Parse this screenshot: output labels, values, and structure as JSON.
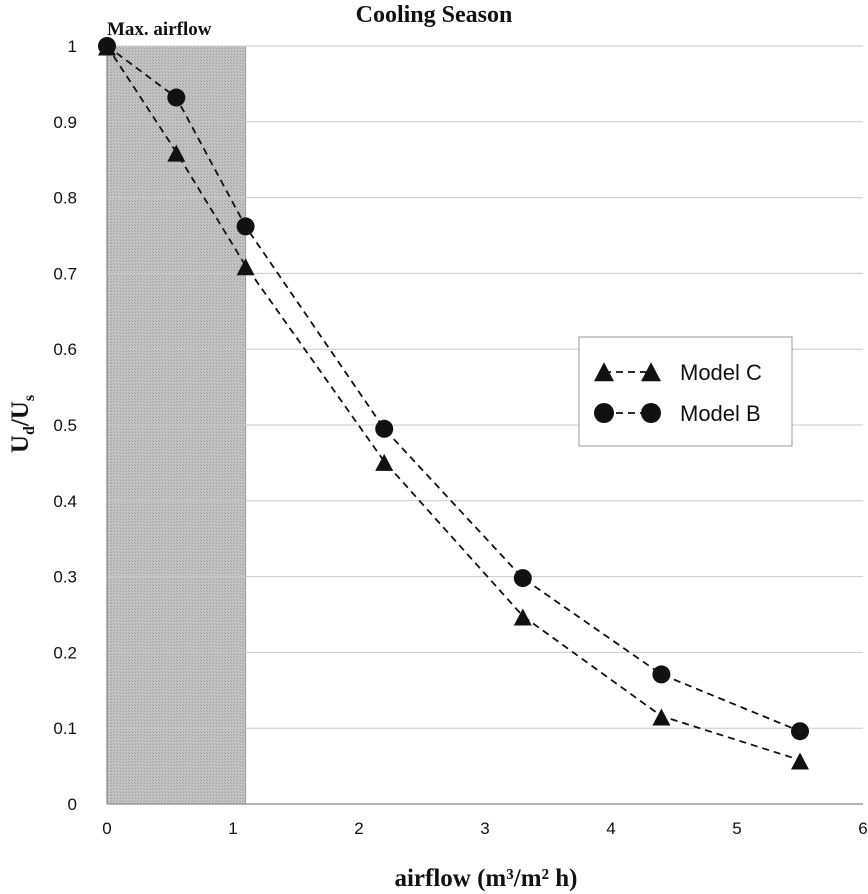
{
  "chart_data": {
    "type": "line",
    "title": "Cooling Season",
    "xlabel": "airflow (m³/m² h)",
    "ylabel": "Ud/Us",
    "ylabel_main": "U",
    "ylabel_sub_d": "d",
    "ylabel_sep": "/",
    "ylabel_sub_s": "s",
    "xlim": [
      0,
      6
    ],
    "ylim": [
      0,
      1
    ],
    "x_ticks": [
      0,
      1,
      2,
      3,
      4,
      5,
      6
    ],
    "y_ticks": [
      0,
      0.1,
      0.2,
      0.3,
      0.4,
      0.5,
      0.6,
      0.7,
      0.8,
      0.9,
      1
    ],
    "x_tick_labels": [
      "0",
      "1",
      "2",
      "3",
      "4",
      "5",
      "6"
    ],
    "y_tick_labels": [
      "0",
      "0.1",
      "0.2",
      "0.3",
      "0.4",
      "0.5",
      "0.6",
      "0.7",
      "0.8",
      "0.9",
      "1"
    ],
    "grid": "horizontal",
    "shaded_region": {
      "x_from": 0,
      "x_to": 1.1,
      "label": "Max. airflow"
    },
    "legend": {
      "position": "center-right"
    },
    "series": [
      {
        "name": "Model C",
        "marker": "triangle",
        "line": "dashed",
        "color": "#111111",
        "x": [
          0,
          0.55,
          1.1,
          2.2,
          3.3,
          4.4,
          5.5
        ],
        "values": [
          1.0,
          0.86,
          0.71,
          0.452,
          0.248,
          0.116,
          0.058
        ]
      },
      {
        "name": "Model B",
        "marker": "circle",
        "line": "dashed",
        "color": "#111111",
        "x": [
          0,
          0.55,
          1.1,
          2.2,
          3.3,
          4.4,
          5.5
        ],
        "values": [
          1.0,
          0.932,
          0.762,
          0.495,
          0.298,
          0.171,
          0.096
        ]
      }
    ]
  }
}
